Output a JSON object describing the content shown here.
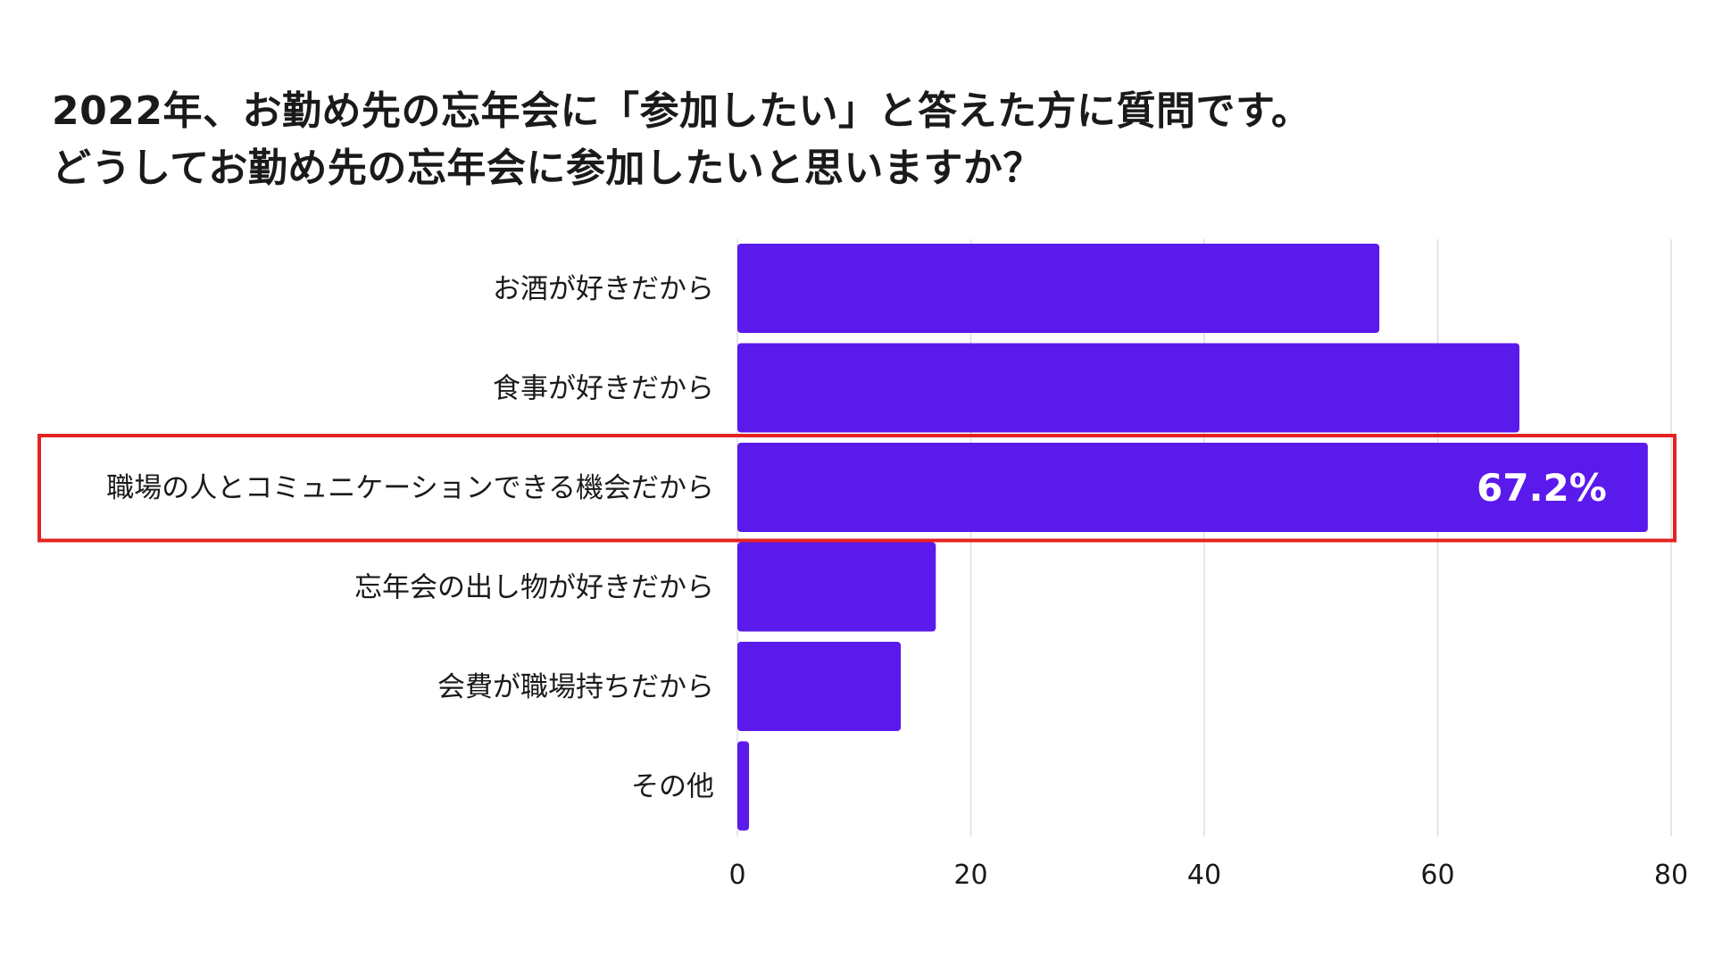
{
  "title_lines": [
    "2022年、お勤め先の忘年会に「参加したい」と答えた方に質問です。",
    "どうしてお勤め先の忘年会に参加したいと思いますか？"
  ],
  "colors": {
    "bar": "#5B1AEC",
    "highlight_border": "#E52222",
    "grid": "#DDDDDD",
    "data_label": "#FFFFFF"
  },
  "chart_data": {
    "type": "bar",
    "orientation": "horizontal",
    "categories": [
      "お酒が好きだから",
      "食事が好きだから",
      "職場の人とコミュニケーションできる機会だから",
      "忘年会の出し物が好きだから",
      "会費が職場持ちだから",
      "その他"
    ],
    "values": [
      55,
      67,
      78,
      17,
      14,
      1
    ],
    "xlim": [
      0,
      80
    ],
    "xticks": [
      0,
      20,
      40,
      60,
      80
    ],
    "grid": true,
    "highlight_index": 2,
    "data_labels": [
      {
        "index": 2,
        "text": "67.2%"
      }
    ]
  }
}
